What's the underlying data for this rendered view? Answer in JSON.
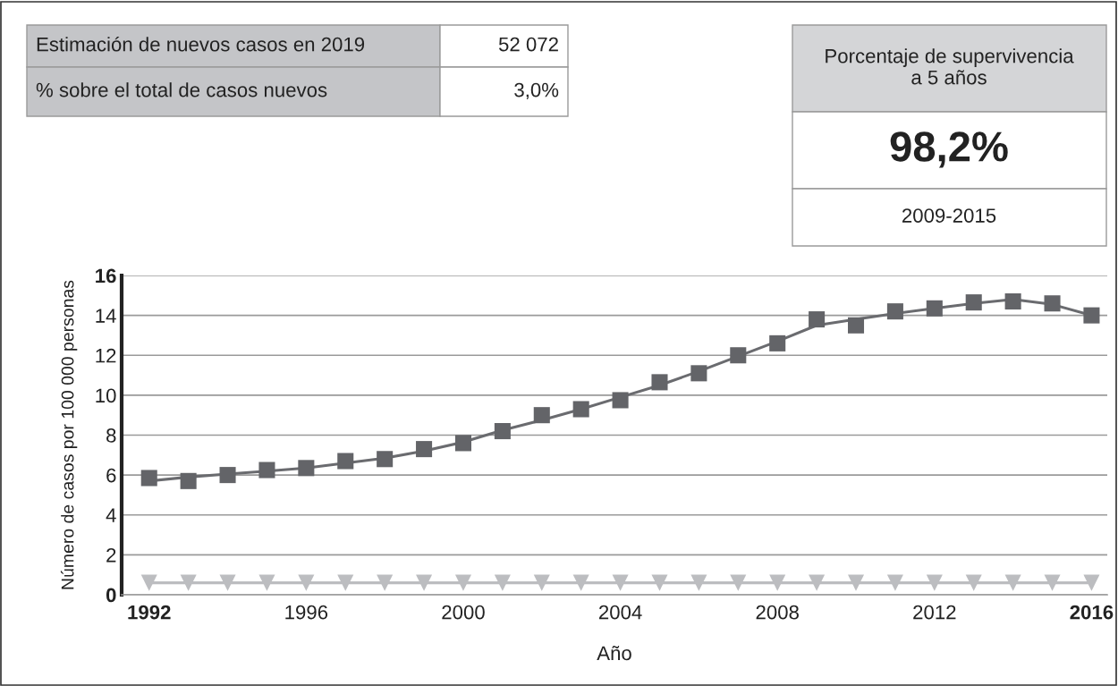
{
  "chart_data": [
    {
      "type": "other",
      "annotations": [
        "Estimación de nuevos casos en 2019",
        "52 072",
        "% sobre el total de casos nuevos",
        "3,0%"
      ]
    },
    {
      "type": "other",
      "annotations": [
        "Porcentaje de supervivencia\na 5 años",
        "98,2%",
        "2009-2015"
      ]
    },
    {
      "type": "line",
      "xlabel": "Año",
      "ylabel": "Número de casos por 100 000 personas",
      "x": [
        1992,
        1993,
        1994,
        1995,
        1996,
        1997,
        1998,
        1999,
        2000,
        2001,
        2002,
        2003,
        2004,
        2005,
        2006,
        2007,
        2008,
        2009,
        2010,
        2011,
        2012,
        2013,
        2014,
        2015,
        2016
      ],
      "series": [
        {
          "type": "line",
          "color": "#6a6b6f",
          "marker": "none",
          "values": [
            5.7,
            5.9,
            6.05,
            6.2,
            6.35,
            6.6,
            6.85,
            7.2,
            7.65,
            8.25,
            8.75,
            9.3,
            9.9,
            10.5,
            11.2,
            11.95,
            12.7,
            13.5,
            13.8,
            14.1,
            14.35,
            14.6,
            14.8,
            14.55,
            14.0
          ]
        },
        {
          "type": "scatter",
          "color": "#636468",
          "marker": "square",
          "values": [
            5.85,
            5.7,
            6.0,
            6.25,
            6.35,
            6.7,
            6.8,
            7.3,
            7.6,
            8.2,
            9.0,
            9.3,
            9.75,
            10.65,
            11.1,
            12.0,
            12.6,
            13.8,
            13.5,
            14.2,
            14.35,
            14.65,
            14.7,
            14.6,
            14.0
          ]
        },
        {
          "type": "line",
          "color": "#bcbdc0",
          "marker": "triangle",
          "values": [
            0.6,
            0.6,
            0.6,
            0.6,
            0.6,
            0.6,
            0.6,
            0.6,
            0.6,
            0.6,
            0.6,
            0.6,
            0.6,
            0.6,
            0.6,
            0.6,
            0.6,
            0.6,
            0.6,
            0.6,
            0.6,
            0.6,
            0.6,
            0.6,
            0.6
          ]
        }
      ],
      "xlim": [
        1991.3,
        2016.4
      ],
      "ylim": [
        0,
        16
      ],
      "xticks": [
        1992,
        1996,
        2000,
        2004,
        2008,
        2012,
        2016
      ],
      "yticks": [
        0,
        2,
        4,
        6,
        8,
        10,
        12,
        14,
        16
      ],
      "grid": "y",
      "legend": false
    }
  ]
}
